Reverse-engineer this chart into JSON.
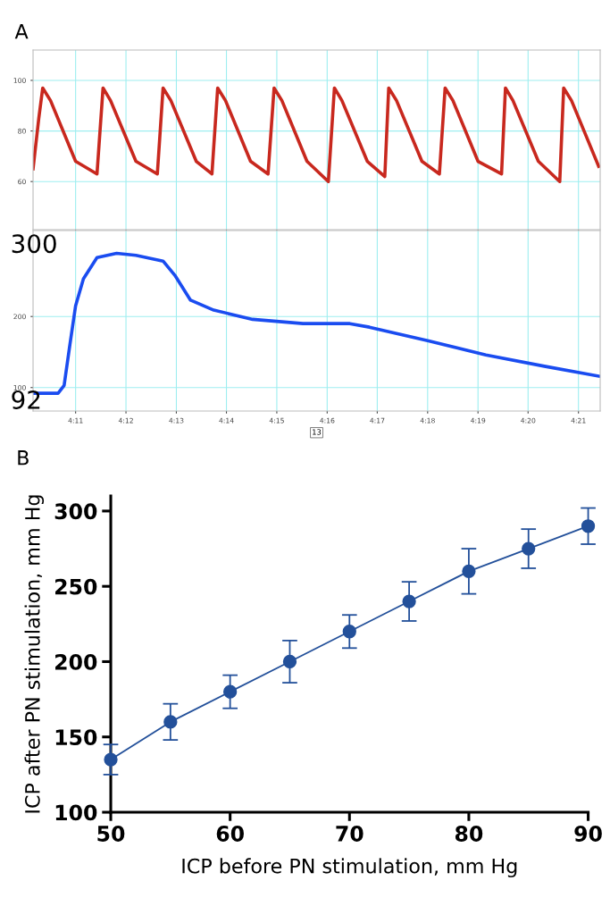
{
  "chart_data": [
    {
      "type": "line",
      "title": "A",
      "tick_labels": "y",
      "grid": true,
      "marker": "none",
      "line_style": "solid",
      "xlim": [
        4.1692,
        4.3572
      ],
      "xticks": [
        {
          "value": 4.1833,
          "label": null
        },
        {
          "value": 4.2,
          "label": null
        },
        {
          "value": 4.2167,
          "label": null
        },
        {
          "value": 4.2333,
          "label": null
        },
        {
          "value": 4.25,
          "label": null
        },
        {
          "value": 4.2667,
          "label": null
        },
        {
          "value": 4.2833,
          "label": null
        },
        {
          "value": 4.3,
          "label": null
        },
        {
          "value": 4.3167,
          "label": null
        },
        {
          "value": 4.3333,
          "label": null
        },
        {
          "value": 4.35,
          "label": null
        }
      ],
      "ylim": [
        41,
        112
      ],
      "yticks": [
        60,
        80,
        100
      ],
      "series": [
        {
          "color": "#c8281e",
          "x": [
            4.1692,
            4.1711,
            4.1724,
            4.175,
            4.1833,
            4.1904,
            4.1924,
            4.1949,
            4.2033,
            4.2104,
            4.2123,
            4.2149,
            4.2233,
            4.2285,
            4.2304,
            4.233,
            4.2413,
            4.2471,
            4.2491,
            4.2517,
            4.26,
            4.2671,
            4.2691,
            4.2716,
            4.28,
            4.2858,
            4.2871,
            4.2897,
            4.2981,
            4.3039,
            4.3058,
            4.3084,
            4.3167,
            4.3245,
            4.3258,
            4.3283,
            4.3367,
            4.3438,
            4.3451,
            4.3477,
            4.3567
          ],
          "values": [
            65,
            85,
            97,
            92,
            68,
            63,
            97,
            92,
            68,
            63,
            97,
            92,
            68,
            63,
            97,
            92,
            68,
            63,
            97,
            92,
            68,
            60,
            97,
            92,
            68,
            62,
            97,
            92,
            68,
            63,
            97,
            92,
            68,
            63,
            97,
            92,
            68,
            60,
            97,
            92,
            66
          ]
        }
      ]
    },
    {
      "type": "line",
      "grid": true,
      "marker": "none",
      "line_style": "solid",
      "xlim": [
        4.1692,
        4.3572
      ],
      "xticks": [
        {
          "value": 4.1833,
          "label": "4:11"
        },
        {
          "value": 4.2,
          "label": "4:12"
        },
        {
          "value": 4.2167,
          "label": "4:13"
        },
        {
          "value": 4.2333,
          "label": "4:14"
        },
        {
          "value": 4.25,
          "label": "4:15"
        },
        {
          "value": 4.2667,
          "label": "4:16"
        },
        {
          "value": 4.2833,
          "label": "4:17"
        },
        {
          "value": 4.3,
          "label": "4:18"
        },
        {
          "value": 4.3167,
          "label": "4:19"
        },
        {
          "value": 4.3333,
          "label": "4:20"
        },
        {
          "value": 4.35,
          "label": "4:21"
        }
      ],
      "ylim": [
        67,
        321
      ],
      "yticks": [
        100,
        200
      ],
      "annotations": [
        "300",
        "92",
        "13"
      ],
      "series": [
        {
          "color": "#1a4cf0",
          "x": [
            4.1692,
            4.1775,
            4.1795,
            4.1814,
            4.1833,
            4.1859,
            4.1904,
            4.1969,
            4.2033,
            4.2123,
            4.2162,
            4.2214,
            4.2291,
            4.242,
            4.2587,
            4.2742,
            4.2807,
            4.3,
            4.3193,
            4.3387,
            4.3567
          ],
          "values": [
            92,
            92,
            103,
            160,
            215,
            253,
            283,
            289,
            286,
            278,
            258,
            223,
            209,
            196,
            190,
            190,
            185,
            166,
            146,
            130,
            116
          ]
        }
      ]
    },
    {
      "type": "line",
      "title": "B",
      "xlabel": "ICP before PN stimulation, mm Hg",
      "ylabel": "ICP after PN stimulation, mm Hg",
      "grid": false,
      "marker": "circle",
      "line_style": "solid",
      "xlim": [
        50,
        90
      ],
      "xticks": [
        50,
        60,
        70,
        80,
        90
      ],
      "ylim": [
        100,
        310
      ],
      "yticks": [
        100,
        150,
        200,
        250,
        300
      ],
      "series": [
        {
          "color": "#23509a",
          "x": [
            50,
            55,
            60,
            65,
            70,
            75,
            80,
            85,
            90
          ],
          "values": [
            135,
            160,
            180,
            200,
            220,
            240,
            260,
            275,
            290
          ],
          "errors": [
            10,
            12,
            11,
            14,
            11,
            13,
            15,
            13,
            12
          ]
        }
      ]
    }
  ]
}
